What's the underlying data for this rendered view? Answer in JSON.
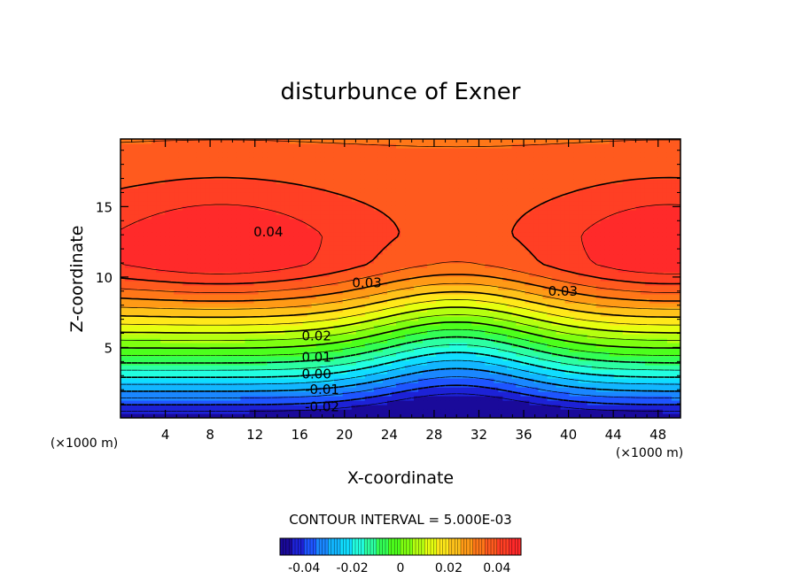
{
  "chart_data": {
    "type": "contour",
    "title": "disturbunce of Exner",
    "xlabel": "X-coordinate",
    "ylabel": "Z-coordinate",
    "x_unit": "(×1000 m)",
    "z_unit": "(×1000 m)",
    "xlim": [
      0,
      50
    ],
    "ylim": [
      0,
      19.8
    ],
    "xticks": [
      4,
      8,
      12,
      16,
      20,
      24,
      28,
      32,
      36,
      40,
      44,
      48
    ],
    "yticks": [
      5,
      10,
      15
    ],
    "contour_interval_label": "CONTOUR INTERVAL = 5.000E-03",
    "contour_interval": 0.005,
    "contour_labels": [
      {
        "text": "0.04",
        "x": 13.2,
        "z": 13.2
      },
      {
        "text": "0.03",
        "x": 22.0,
        "z": 9.6
      },
      {
        "text": "0.03",
        "x": 39.5,
        "z": 9.0
      },
      {
        "text": "0.02",
        "x": 17.5,
        "z": 5.8
      },
      {
        "text": "0.01",
        "x": 17.5,
        "z": 4.3
      },
      {
        "text": "0.00",
        "x": 17.5,
        "z": 3.1
      },
      {
        "text": "-0.01",
        "x": 18.0,
        "z": 2.0
      },
      {
        "text": "-0.02",
        "x": 18.0,
        "z": 0.8
      }
    ],
    "colorbar": {
      "range": [
        -0.05,
        0.05
      ],
      "tick_values": [
        -0.04,
        -0.02,
        0,
        0.02,
        0.04
      ],
      "tick_labels": [
        "-0.04",
        "-0.02",
        "0",
        "0.02",
        "0.04"
      ]
    },
    "field_range": [
      -0.05,
      0.05
    ]
  }
}
